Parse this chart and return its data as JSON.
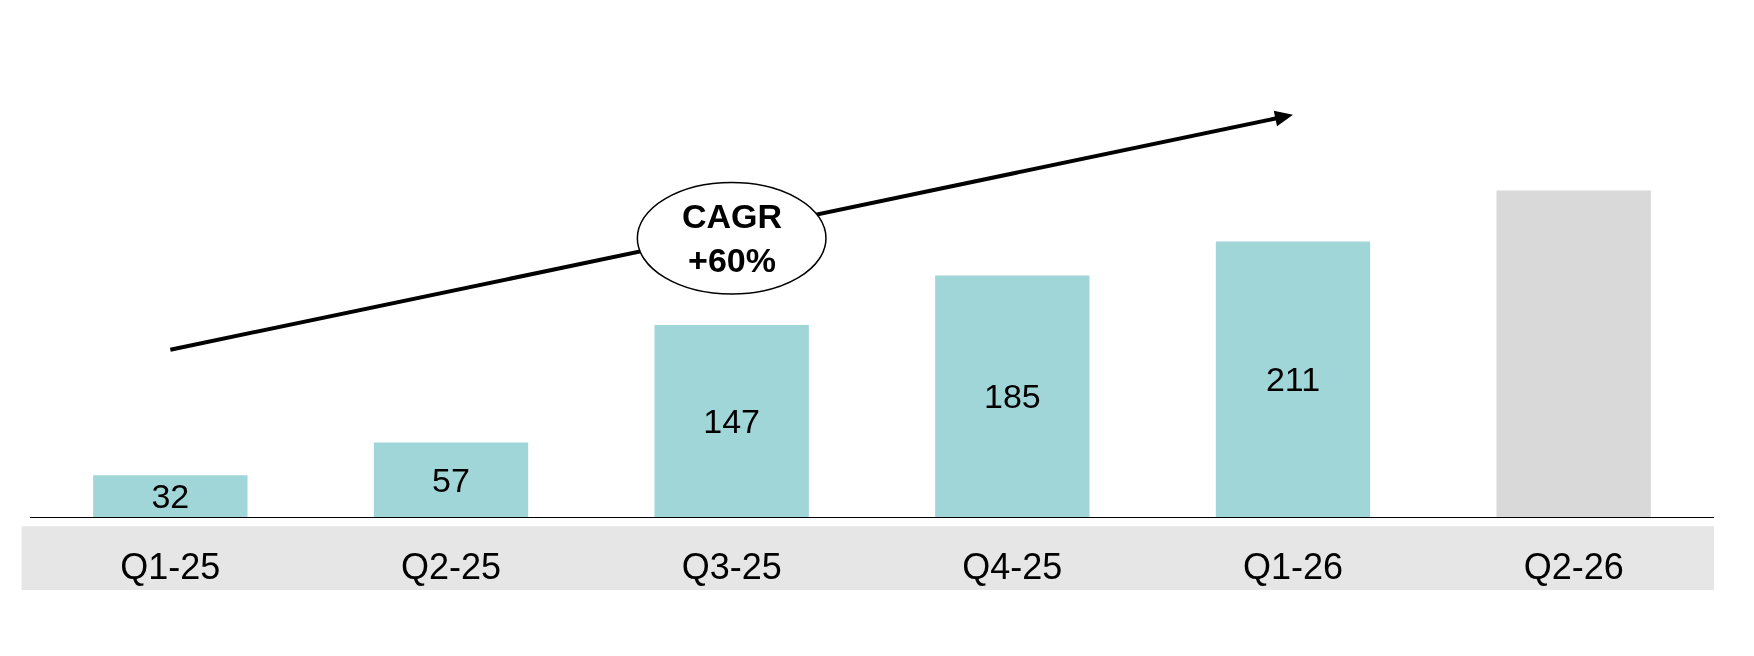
{
  "chart_data": {
    "type": "bar",
    "categories": [
      "Q1-25",
      "Q2-25",
      "Q3-25",
      "Q4-25",
      "Q1-26",
      "Q2-26"
    ],
    "values": [
      32,
      57,
      147,
      185,
      211,
      250
    ],
    "colors": [
      "#a0d6d8",
      "#a0d6d8",
      "#a0d6d8",
      "#a0d6d8",
      "#a0d6d8",
      "#d9d9d9"
    ],
    "value_labels": [
      "32",
      "57",
      "147",
      "185",
      "211",
      null
    ],
    "annotations": [
      "CAGR\n+60%"
    ],
    "legend": false
  }
}
